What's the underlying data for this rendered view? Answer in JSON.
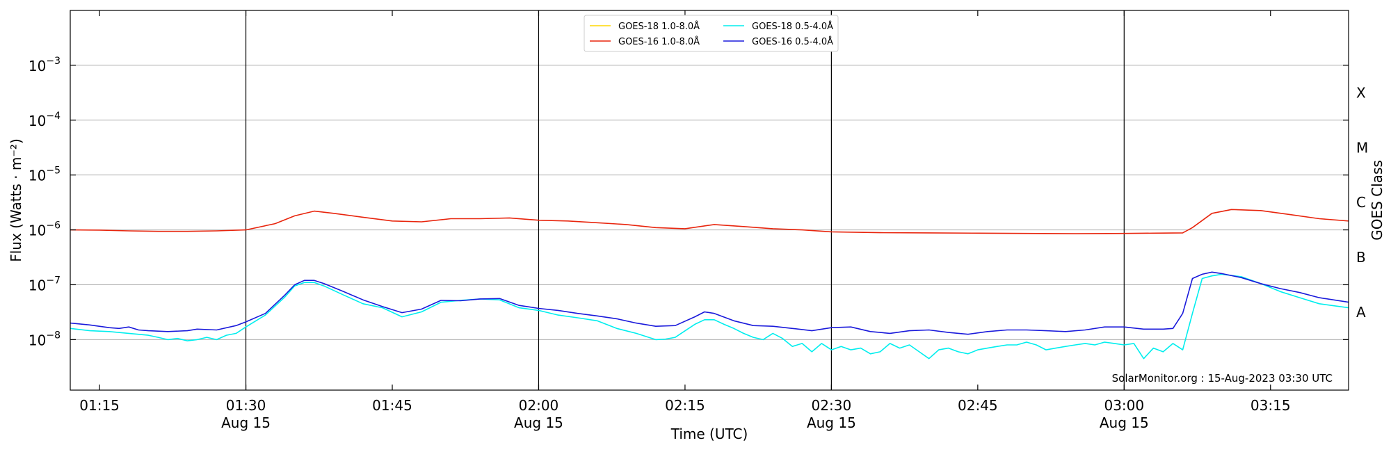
{
  "chart_data": {
    "type": "line",
    "xlabel": "Time (UTC)",
    "ylabel": "Flux (Watts · m⁻²)",
    "y2label": "GOES Class",
    "yscale": "log",
    "ylim": [
      1.2e-09,
      0.01
    ],
    "xlim": [
      "01:12",
      "03:23"
    ],
    "grid": "horizontal at decades",
    "legend_placement": "top-center",
    "x_ticks": [
      {
        "time": "01:15",
        "label": "01:15",
        "date": ""
      },
      {
        "time": "01:30",
        "label": "01:30",
        "date": "Aug 15"
      },
      {
        "time": "01:45",
        "label": "01:45",
        "date": ""
      },
      {
        "time": "02:00",
        "label": "02:00",
        "date": "Aug 15"
      },
      {
        "time": "02:15",
        "label": "02:15",
        "date": ""
      },
      {
        "time": "02:30",
        "label": "02:30",
        "date": "Aug 15"
      },
      {
        "time": "02:45",
        "label": "02:45",
        "date": ""
      },
      {
        "time": "03:00",
        "label": "03:00",
        "date": "Aug 15"
      },
      {
        "time": "03:15",
        "label": "03:15",
        "date": ""
      }
    ],
    "vlines": [
      "01:30",
      "02:00",
      "02:30",
      "03:00"
    ],
    "y_ticks": [
      {
        "value": 1e-08,
        "mantissa": "10",
        "exponent": "−8"
      },
      {
        "value": 1e-07,
        "mantissa": "10",
        "exponent": "−7"
      },
      {
        "value": 1e-06,
        "mantissa": "10",
        "exponent": "−6"
      },
      {
        "value": 1e-05,
        "mantissa": "10",
        "exponent": "−5"
      },
      {
        "value": 0.0001,
        "mantissa": "10",
        "exponent": "−4"
      },
      {
        "value": 0.001,
        "mantissa": "10",
        "exponent": "−3"
      }
    ],
    "goes_classes": [
      {
        "label": "A",
        "value": 3.16e-08
      },
      {
        "label": "B",
        "value": 3.16e-07
      },
      {
        "label": "C",
        "value": 3.16e-06
      },
      {
        "label": "M",
        "value": 3.16e-05
      },
      {
        "label": "X",
        "value": 0.000316
      }
    ],
    "annotation": "SolarMonitor.org : 15-Aug-2023 03:30 UTC",
    "legend": [
      {
        "label": "GOES-18 1.0-8.0Å",
        "color": "#ffd700",
        "col": 0,
        "row": 0
      },
      {
        "label": "GOES-16 1.0-8.0Å",
        "color": "#e8250d",
        "col": 0,
        "row": 1
      },
      {
        "label": "GOES-18 0.5-4.0Å",
        "color": "#00eeee",
        "col": 1,
        "row": 0
      },
      {
        "label": "GOES-16 0.5-4.0Å",
        "color": "#1a1adb",
        "col": 1,
        "row": 1
      }
    ],
    "series": [
      {
        "name": "GOES-16 1.0-8.0Å",
        "color": "#e8250d",
        "x": [
          "01:12",
          "01:15",
          "01:18",
          "01:21",
          "01:24",
          "01:27",
          "01:30",
          "01:33",
          "01:35",
          "01:37",
          "01:39",
          "01:42",
          "01:45",
          "01:48",
          "01:51",
          "01:54",
          "01:57",
          "02:00",
          "02:03",
          "02:06",
          "02:09",
          "02:12",
          "02:15",
          "02:18",
          "02:21",
          "02:24",
          "02:27",
          "02:30",
          "02:35",
          "02:40",
          "02:45",
          "02:50",
          "02:55",
          "03:00",
          "03:03",
          "03:06",
          "03:07",
          "03:09",
          "03:11",
          "03:14",
          "03:17",
          "03:20",
          "03:23"
        ],
        "values": [
          1e-06,
          9.9e-07,
          9.6e-07,
          9.4e-07,
          9.4e-07,
          9.6e-07,
          1e-06,
          1.3e-06,
          1.8e-06,
          2.2e-06,
          2e-06,
          1.7e-06,
          1.45e-06,
          1.4e-06,
          1.6e-06,
          1.6e-06,
          1.65e-06,
          1.5e-06,
          1.45e-06,
          1.35e-06,
          1.25e-06,
          1.1e-06,
          1.05e-06,
          1.25e-06,
          1.15e-06,
          1.05e-06,
          1e-06,
          9.2e-07,
          8.9e-07,
          8.8e-07,
          8.7e-07,
          8.6e-07,
          8.5e-07,
          8.6e-07,
          8.7e-07,
          8.8e-07,
          1.1e-06,
          2e-06,
          2.35e-06,
          2.25e-06,
          1.9e-06,
          1.6e-06,
          1.45e-06
        ]
      },
      {
        "name": "GOES-18 0.5-4.0Å",
        "color": "#00eeee",
        "x": [
          "01:12",
          "01:14",
          "01:16",
          "01:18",
          "01:20",
          "01:21",
          "01:22",
          "01:23",
          "01:24",
          "01:25",
          "01:26",
          "01:27",
          "01:28",
          "01:29",
          "01:30",
          "01:32",
          "01:34",
          "01:35",
          "01:36",
          "01:37",
          "01:38",
          "01:40",
          "01:42",
          "01:44",
          "01:46",
          "01:48",
          "01:50",
          "01:52",
          "01:54",
          "01:56",
          "01:58",
          "02:00",
          "02:02",
          "02:04",
          "02:06",
          "02:08",
          "02:10",
          "02:12",
          "02:13",
          "02:14",
          "02:16",
          "02:17",
          "02:18",
          "02:19",
          "02:20",
          "02:21",
          "02:22",
          "02:23",
          "02:24",
          "02:25",
          "02:26",
          "02:27",
          "02:28",
          "02:29",
          "02:30",
          "02:31",
          "02:32",
          "02:33",
          "02:34",
          "02:35",
          "02:36",
          "02:37",
          "02:38",
          "02:39",
          "02:40",
          "02:41",
          "02:42",
          "02:43",
          "02:44",
          "02:45",
          "02:46",
          "02:47",
          "02:48",
          "02:49",
          "02:50",
          "02:51",
          "02:52",
          "02:53",
          "02:54",
          "02:55",
          "02:56",
          "02:57",
          "02:58",
          "02:59",
          "03:00",
          "03:01",
          "03:02",
          "03:03",
          "03:04",
          "03:05",
          "03:06",
          "03:07",
          "03:08",
          "03:09",
          "03:10",
          "03:12",
          "03:14",
          "03:16",
          "03:18",
          "03:20",
          "03:23"
        ],
        "values": [
          1.6e-08,
          1.45e-08,
          1.4e-08,
          1.3e-08,
          1.2e-08,
          1.1e-08,
          1e-08,
          1.05e-08,
          9.5e-09,
          1e-08,
          1.1e-08,
          1e-08,
          1.2e-08,
          1.3e-08,
          1.7e-08,
          2.8e-08,
          6e-08,
          9.5e-08,
          1.1e-07,
          1.1e-07,
          9.5e-08,
          6.5e-08,
          4.5e-08,
          3.8e-08,
          2.6e-08,
          3.2e-08,
          4.8e-08,
          5.2e-08,
          5.5e-08,
          5.3e-08,
          3.8e-08,
          3.4e-08,
          2.8e-08,
          2.5e-08,
          2.2e-08,
          1.6e-08,
          1.3e-08,
          1e-08,
          1.02e-08,
          1.1e-08,
          1.9e-08,
          2.3e-08,
          2.3e-08,
          1.9e-08,
          1.6e-08,
          1.3e-08,
          1.1e-08,
          1e-08,
          1.3e-08,
          1.05e-08,
          7.5e-09,
          8.5e-09,
          6e-09,
          8.5e-09,
          6.5e-09,
          7.5e-09,
          6.5e-09,
          7e-09,
          5.5e-09,
          6e-09,
          8.5e-09,
          7e-09,
          8e-09,
          6e-09,
          4.5e-09,
          6.5e-09,
          7e-09,
          6e-09,
          5.5e-09,
          6.5e-09,
          7e-09,
          7.5e-09,
          8e-09,
          8e-09,
          9e-09,
          8e-09,
          6.5e-09,
          7e-09,
          7.5e-09,
          8e-09,
          8.5e-09,
          8e-09,
          9e-09,
          8.5e-09,
          8e-09,
          8.5e-09,
          4.5e-09,
          7e-09,
          6e-09,
          8.5e-09,
          6.5e-09,
          3e-08,
          1.3e-07,
          1.45e-07,
          1.55e-07,
          1.4e-07,
          1.05e-07,
          7.5e-08,
          5.8e-08,
          4.5e-08,
          3.8e-08
        ]
      },
      {
        "name": "GOES-16 0.5-4.0Å",
        "color": "#1a1adb",
        "x": [
          "01:12",
          "01:14",
          "01:16",
          "01:17",
          "01:18",
          "01:19",
          "01:20",
          "01:22",
          "01:24",
          "01:25",
          "01:27",
          "01:29",
          "01:30",
          "01:32",
          "01:34",
          "01:35",
          "01:36",
          "01:37",
          "01:38",
          "01:40",
          "01:42",
          "01:44",
          "01:46",
          "01:48",
          "01:50",
          "01:52",
          "01:54",
          "01:56",
          "01:58",
          "02:00",
          "02:02",
          "02:04",
          "02:06",
          "02:08",
          "02:10",
          "02:12",
          "02:14",
          "02:16",
          "02:17",
          "02:18",
          "02:20",
          "02:22",
          "02:24",
          "02:26",
          "02:28",
          "02:30",
          "02:32",
          "02:34",
          "02:36",
          "02:38",
          "02:40",
          "02:42",
          "02:44",
          "02:46",
          "02:48",
          "02:50",
          "02:52",
          "02:54",
          "02:56",
          "02:58",
          "03:00",
          "03:02",
          "03:04",
          "03:05",
          "03:06",
          "03:07",
          "03:08",
          "03:09",
          "03:10",
          "03:12",
          "03:14",
          "03:16",
          "03:18",
          "03:20",
          "03:23"
        ],
        "values": [
          2e-08,
          1.85e-08,
          1.65e-08,
          1.6e-08,
          1.7e-08,
          1.5e-08,
          1.45e-08,
          1.4e-08,
          1.45e-08,
          1.55e-08,
          1.5e-08,
          1.8e-08,
          2.1e-08,
          3e-08,
          6.5e-08,
          1e-07,
          1.2e-07,
          1.2e-07,
          1.05e-07,
          7.5e-08,
          5.3e-08,
          4e-08,
          3.1e-08,
          3.6e-08,
          5.2e-08,
          5.1e-08,
          5.5e-08,
          5.6e-08,
          4.2e-08,
          3.7e-08,
          3.4e-08,
          3e-08,
          2.7e-08,
          2.4e-08,
          2e-08,
          1.75e-08,
          1.8e-08,
          2.6e-08,
          3.2e-08,
          3e-08,
          2.2e-08,
          1.8e-08,
          1.75e-08,
          1.6e-08,
          1.45e-08,
          1.65e-08,
          1.7e-08,
          1.4e-08,
          1.3e-08,
          1.45e-08,
          1.5e-08,
          1.35e-08,
          1.25e-08,
          1.4e-08,
          1.5e-08,
          1.5e-08,
          1.45e-08,
          1.4e-08,
          1.5e-08,
          1.7e-08,
          1.7e-08,
          1.55e-08,
          1.55e-08,
          1.6e-08,
          3e-08,
          1.3e-07,
          1.55e-07,
          1.7e-07,
          1.6e-07,
          1.35e-07,
          1.05e-07,
          8.5e-08,
          7.2e-08,
          5.8e-08,
          4.8e-08
        ]
      }
    ]
  }
}
